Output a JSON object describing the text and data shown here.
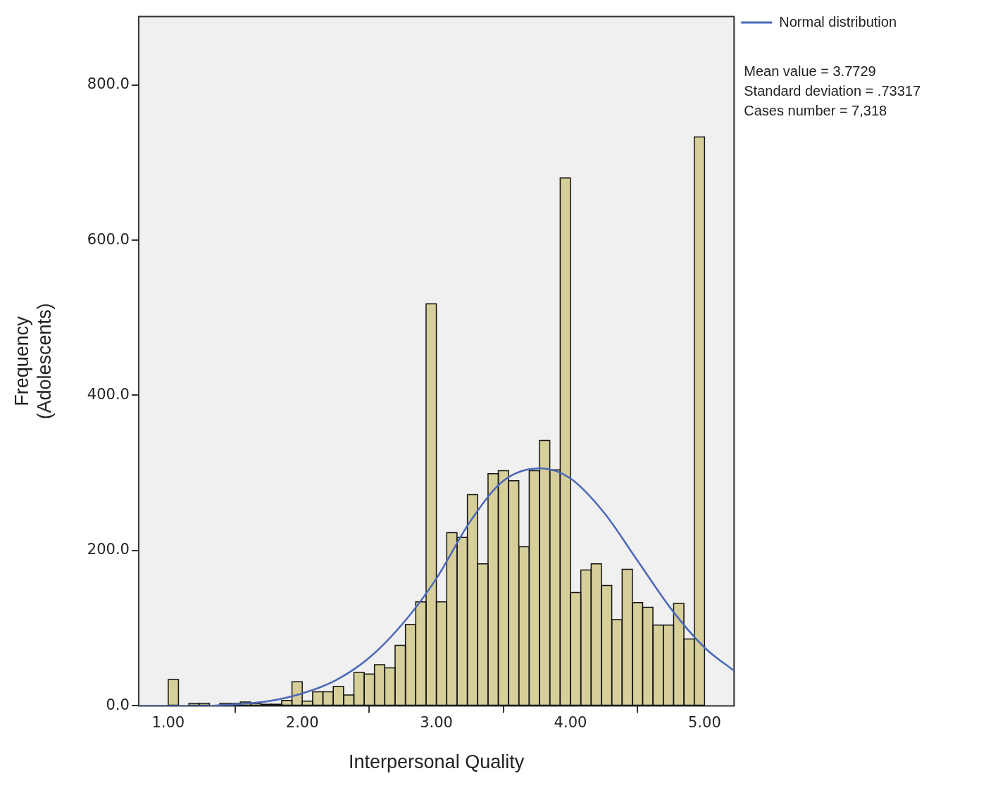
{
  "chart_data": {
    "type": "histogram",
    "xlabel": "Interpersonal Quality",
    "ylabel": "Frequency\n(Adolescents)",
    "bins": [
      1,
      1.077,
      1.154,
      1.231,
      1.308,
      1.385,
      1.462,
      1.538,
      1.615,
      1.692,
      1.769,
      1.846,
      1.923,
      2,
      2.077,
      2.154,
      2.231,
      2.308,
      2.385,
      2.462,
      2.538,
      2.615,
      2.692,
      2.769,
      2.846,
      2.923,
      3,
      3.077,
      3.154,
      3.231,
      3.308,
      3.385,
      3.462,
      3.538,
      3.615,
      3.692,
      3.769,
      3.846,
      3.923,
      4,
      4.077,
      4.154,
      4.231,
      4.308,
      4.385,
      4.462,
      4.538,
      4.615,
      4.692,
      4.769,
      4.846,
      4.923,
      5
    ],
    "series": [
      {
        "color": "#d6cf9a",
        "values": [
          34,
          0,
          3,
          3,
          0,
          3,
          3,
          5,
          3,
          2,
          2,
          7,
          31,
          6,
          18,
          18,
          25,
          14,
          43,
          41,
          53,
          49,
          78,
          105,
          134,
          518,
          134,
          223,
          217,
          272,
          183,
          299,
          303,
          290,
          205,
          303,
          342,
          304,
          680,
          146,
          175,
          183,
          155,
          111,
          176,
          133,
          127,
          104,
          104,
          132,
          86,
          733
        ]
      },
      {
        "type": "line",
        "name": "Normal distribution",
        "color": "#4a68b8",
        "x": [
          0.78,
          1.0,
          1.25,
          1.5,
          1.75,
          2.0,
          2.25,
          2.5,
          2.75,
          3.0,
          3.25,
          3.5,
          3.77,
          4.0,
          4.25,
          4.5,
          4.75,
          5.0,
          5.22
        ],
        "values": [
          0,
          0,
          0,
          2,
          6,
          16,
          33,
          62,
          106,
          164,
          237,
          290,
          306,
          293,
          249,
          187,
          125,
          75,
          45
        ]
      }
    ],
    "xlim": [
      0.78,
      5.22
    ],
    "ylim": [
      0,
      888
    ],
    "xticks": [
      {
        "value": 1,
        "label": "1.00"
      },
      {
        "value": 2,
        "label": "2.00"
      },
      {
        "value": 3,
        "label": "3.00"
      },
      {
        "value": 4,
        "label": "4.00"
      },
      {
        "value": 5,
        "label": "5.00"
      }
    ],
    "yticks": [
      {
        "value": 0,
        "label": "0.0"
      },
      {
        "value": 200,
        "label": "200.0"
      },
      {
        "value": 400,
        "label": "400.0"
      },
      {
        "value": 600,
        "label": "600.0"
      },
      {
        "value": 800,
        "label": "800.0"
      }
    ],
    "legend": "top right",
    "marker": "none",
    "line_style": "solid",
    "annotations": [
      "Mean value = 3.7729",
      "Standard deviation = .73317",
      "Cases number = 7,318"
    ]
  }
}
